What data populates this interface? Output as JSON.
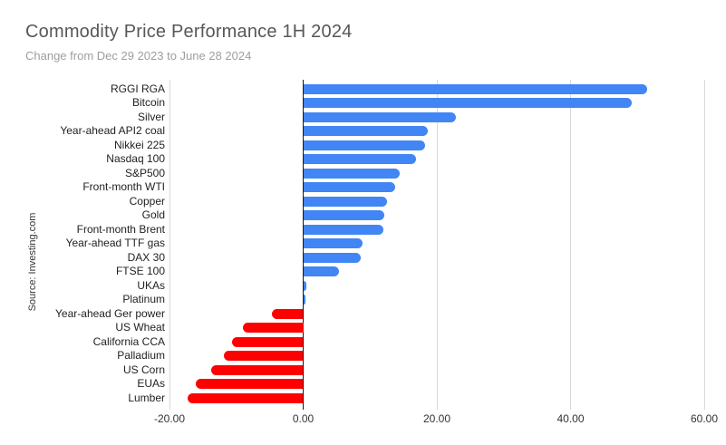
{
  "header": {
    "title": "Commodity Price Performance 1H 2024",
    "subtitle": "Change from Dec 29 2023 to June 28 2024"
  },
  "source_label": "Source: Investing.com",
  "colors": {
    "positive_bar": "#4285F4",
    "negative_bar": "#FF0000",
    "gridline": "#d9d9d9",
    "zero_line": "#1a1a1a"
  },
  "chart_data": {
    "type": "bar",
    "orientation": "horizontal",
    "title": "Commodity Price Performance 1H 2024",
    "subtitle": "Change from Dec 29 2023 to June 28 2024",
    "categories": [
      "RGGI RGA",
      "Bitcoin",
      "Silver",
      "Year-ahead API2 coal",
      "Nikkei 225",
      "Nasdaq 100",
      "S&P500",
      "Front-month WTI",
      "Copper",
      "Gold",
      "Front-month Brent",
      "Year-ahead TTF gas",
      "DAX 30",
      "FTSE 100",
      "UKAs",
      "Platinum",
      "Year-ahead Ger power",
      "US Wheat",
      "California CCA",
      "Palladium",
      "US Corn",
      "EUAs",
      "Lumber"
    ],
    "values": [
      51.4,
      49.2,
      22.8,
      18.7,
      18.2,
      16.9,
      14.4,
      13.7,
      12.6,
      12.1,
      12.0,
      8.9,
      8.6,
      5.4,
      0.5,
      0.4,
      -4.7,
      -9.0,
      -10.7,
      -11.8,
      -13.7,
      -16.1,
      -17.3
    ],
    "xlabel": "",
    "ylabel": "",
    "xlim": [
      -20,
      60
    ],
    "xticks": [
      -20,
      0,
      20,
      40,
      60
    ],
    "xtick_labels": [
      "-20.00",
      "0.00",
      "20.00",
      "40.00",
      "60.00"
    ],
    "grid": true,
    "legend": false,
    "positive_color": "#4285F4",
    "negative_color": "#FF0000"
  }
}
